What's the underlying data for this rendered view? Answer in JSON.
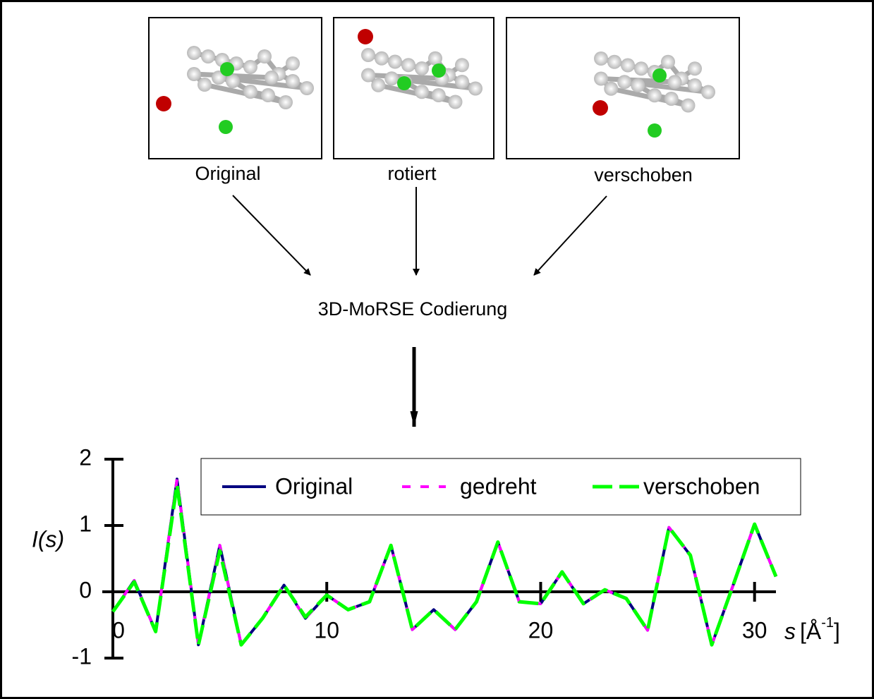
{
  "panels": [
    {
      "label": "Original"
    },
    {
      "label": "rotiert"
    },
    {
      "label": "verschoben"
    }
  ],
  "encoding": {
    "label": "3D-MoRSE Codierung"
  },
  "chart_data": {
    "type": "line",
    "ylabel": "I(s)",
    "xlabel": {
      "symbol": "s",
      "unit_open": "[Å",
      "exponent": "-1",
      "unit_close": "]"
    },
    "x": [
      0,
      1,
      2,
      3,
      4,
      5,
      6,
      7,
      8,
      9,
      10,
      11,
      12,
      13,
      14,
      15,
      16,
      17,
      18,
      19,
      20,
      21,
      22,
      23,
      24,
      25,
      26,
      27,
      28,
      29,
      30,
      31
    ],
    "series": [
      {
        "name": "Original",
        "color": "#000080",
        "dash": "solid",
        "values": [
          -0.3,
          0.17,
          -0.6,
          1.7,
          -0.8,
          0.7,
          -0.8,
          -0.4,
          0.1,
          -0.4,
          -0.05,
          -0.27,
          -0.15,
          0.7,
          -0.57,
          -0.27,
          -0.57,
          -0.15,
          0.75,
          -0.15,
          -0.18,
          0.3,
          -0.18,
          0.03,
          -0.1,
          -0.58,
          0.97,
          0.55,
          -0.8,
          0.1,
          1.02,
          0.23
        ]
      },
      {
        "name": "gedreht",
        "color": "#ff00ff",
        "dash": "short",
        "values": [
          -0.3,
          0.17,
          -0.6,
          1.7,
          -0.8,
          0.7,
          -0.8,
          -0.4,
          0.1,
          -0.4,
          -0.05,
          -0.27,
          -0.15,
          0.7,
          -0.57,
          -0.27,
          -0.57,
          -0.15,
          0.75,
          -0.15,
          -0.18,
          0.3,
          -0.18,
          0.03,
          -0.1,
          -0.58,
          0.97,
          0.55,
          -0.8,
          0.1,
          1.02,
          0.23
        ]
      },
      {
        "name": "verschoben",
        "color": "#00ff00",
        "dash": "long",
        "values": [
          -0.3,
          0.15,
          -0.6,
          1.62,
          -0.8,
          0.62,
          -0.8,
          -0.4,
          0.1,
          -0.38,
          -0.05,
          -0.27,
          -0.15,
          0.7,
          -0.57,
          -0.27,
          -0.57,
          -0.15,
          0.75,
          -0.15,
          -0.18,
          0.3,
          -0.18,
          0.03,
          -0.1,
          -0.58,
          0.97,
          0.55,
          -0.8,
          0.1,
          1.02,
          0.23
        ]
      }
    ],
    "xlim": [
      0,
      31
    ],
    "ylim": [
      -1,
      2
    ],
    "xticks": [
      0,
      10,
      20,
      30
    ],
    "yticks": [
      -1,
      0,
      1,
      2
    ],
    "legend": "top"
  }
}
